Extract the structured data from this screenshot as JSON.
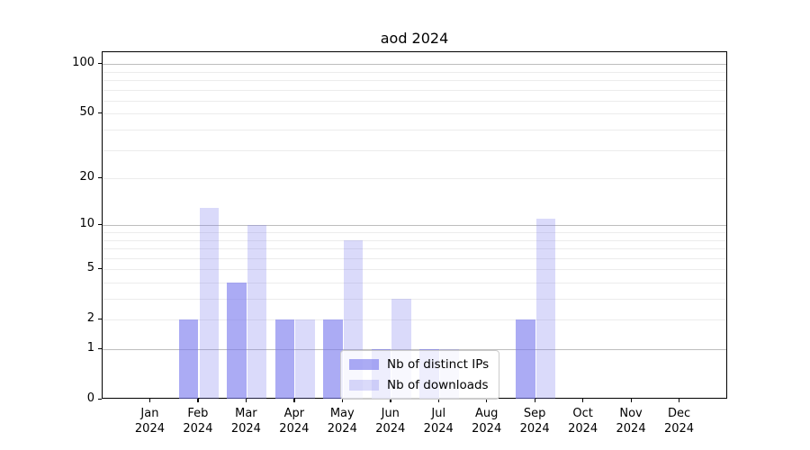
{
  "chart_data": {
    "type": "bar",
    "title": "aod 2024",
    "xlabel": "",
    "ylabel": "",
    "categories": [
      "Jan",
      "Feb",
      "Mar",
      "Apr",
      "May",
      "Jun",
      "Jul",
      "Aug",
      "Sep",
      "Oct",
      "Nov",
      "Dec"
    ],
    "category_year": "2024",
    "series": [
      {
        "name": "Nb of distinct IPs",
        "color": "rgba(119,119,238,0.62)",
        "values": [
          0,
          2,
          4,
          2,
          2,
          1,
          1,
          0,
          2,
          0,
          0,
          0
        ]
      },
      {
        "name": "Nb of downloads",
        "color": "rgba(119,119,238,0.27)",
        "values": [
          0,
          13,
          10,
          2,
          8,
          3,
          1,
          0,
          11,
          0,
          0,
          0
        ]
      }
    ],
    "yscale": "log1p",
    "ylim": [
      0,
      118
    ],
    "yticks": [
      0,
      1,
      2,
      5,
      10,
      20,
      50,
      100
    ],
    "major_gridlines": [
      1,
      10,
      100
    ],
    "minor_gridlines": [
      2,
      3,
      4,
      5,
      6,
      7,
      8,
      9,
      20,
      30,
      40,
      50,
      60,
      70,
      80,
      90
    ],
    "grid_major_color": "#bdbdbd",
    "grid_minor_color": "#ececec",
    "legend_position": "lower center"
  }
}
